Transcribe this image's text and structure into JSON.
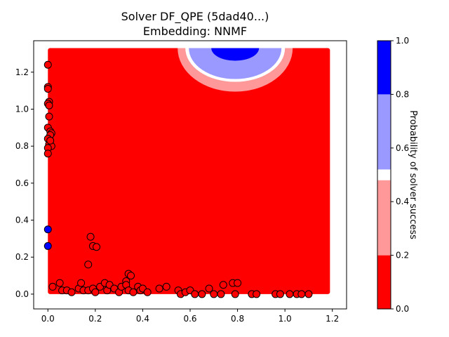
{
  "chart_data": {
    "type": "scatter",
    "title": "Solver DF_QPE (5dad40...)",
    "subtitle": "Embedding: NNMF",
    "xlabel": "",
    "ylabel": "",
    "xlim": [
      -0.06,
      1.26
    ],
    "ylim": [
      -0.08,
      1.37
    ],
    "x_ticks": [
      0.0,
      0.2,
      0.4,
      0.6,
      0.8,
      1.0,
      1.2
    ],
    "x_tick_labels": [
      "0.0",
      "0.2",
      "0.4",
      "0.6",
      "0.8",
      "1.0",
      "1.2"
    ],
    "y_ticks": [
      0.0,
      0.2,
      0.4,
      0.6,
      0.8,
      1.0,
      1.2
    ],
    "y_tick_labels": [
      "0.0",
      "0.2",
      "0.4",
      "0.6",
      "0.8",
      "1.0",
      "1.2"
    ],
    "grid": false,
    "background_field": {
      "description": "predicted probability of solver success over the embedding space",
      "x_range": [
        0.0,
        1.19
      ],
      "y_range": [
        0.0,
        1.33
      ],
      "dominant_value": 0.1,
      "high_region_center": [
        0.79,
        1.33
      ]
    },
    "colorbar": {
      "label": "Probability of solver success",
      "range": [
        0.0,
        1.0
      ],
      "ticks": [
        0.0,
        0.2,
        0.4,
        0.6,
        0.8,
        1.0
      ],
      "tick_labels": [
        "0.0",
        "0.2",
        "0.4",
        "0.6",
        "0.8",
        "1.0"
      ],
      "bands": [
        {
          "from": 0.0,
          "to": 0.2,
          "color": "#ff0000"
        },
        {
          "from": 0.2,
          "to": 0.48,
          "color": "#ff9999"
        },
        {
          "from": 0.48,
          "to": 0.52,
          "color": "#ffffff"
        },
        {
          "from": 0.52,
          "to": 0.8,
          "color": "#9999ff"
        },
        {
          "from": 0.8,
          "to": 1.0,
          "color": "#0000ff"
        }
      ]
    },
    "series": [
      {
        "marker": "circle",
        "fill": "#ff0000",
        "edge": "#000000",
        "points": [
          [
            0.0,
            1.24
          ],
          [
            0.0,
            1.12
          ],
          [
            0.0,
            1.11
          ],
          [
            0.005,
            1.04
          ],
          [
            0.0,
            1.03
          ],
          [
            0.005,
            1.02
          ],
          [
            0.005,
            0.96
          ],
          [
            0.0,
            0.9
          ],
          [
            0.01,
            0.88
          ],
          [
            0.015,
            0.87
          ],
          [
            0.01,
            0.86
          ],
          [
            0.0,
            0.84
          ],
          [
            0.005,
            0.81
          ],
          [
            0.015,
            0.8
          ],
          [
            0.0,
            0.79
          ],
          [
            0.0,
            0.76
          ],
          [
            0.01,
            0.83
          ],
          [
            0.18,
            0.31
          ],
          [
            0.19,
            0.26
          ],
          [
            0.205,
            0.255
          ],
          [
            0.17,
            0.16
          ],
          [
            0.34,
            0.11
          ],
          [
            0.35,
            0.1
          ],
          [
            0.33,
            0.07
          ],
          [
            0.02,
            0.04
          ],
          [
            0.05,
            0.06
          ],
          [
            0.06,
            0.02
          ],
          [
            0.08,
            0.02
          ],
          [
            0.1,
            0.01
          ],
          [
            0.13,
            0.03
          ],
          [
            0.14,
            0.06
          ],
          [
            0.15,
            0.02
          ],
          [
            0.17,
            0.02
          ],
          [
            0.19,
            0.03
          ],
          [
            0.2,
            0.01
          ],
          [
            0.22,
            0.04
          ],
          [
            0.24,
            0.06
          ],
          [
            0.25,
            0.02
          ],
          [
            0.26,
            0.05
          ],
          [
            0.28,
            0.03
          ],
          [
            0.3,
            0.01
          ],
          [
            0.31,
            0.04
          ],
          [
            0.33,
            0.05
          ],
          [
            0.34,
            0.02
          ],
          [
            0.36,
            0.01
          ],
          [
            0.38,
            0.04
          ],
          [
            0.39,
            0.02
          ],
          [
            0.4,
            0.03
          ],
          [
            0.42,
            0.01
          ],
          [
            0.47,
            0.03
          ],
          [
            0.5,
            0.04
          ],
          [
            0.55,
            0.02
          ],
          [
            0.56,
            0.0
          ],
          [
            0.58,
            0.01
          ],
          [
            0.6,
            0.02
          ],
          [
            0.62,
            0.0
          ],
          [
            0.65,
            0.0
          ],
          [
            0.68,
            0.03
          ],
          [
            0.7,
            0.0
          ],
          [
            0.73,
            0.0
          ],
          [
            0.74,
            0.05
          ],
          [
            0.78,
            0.06
          ],
          [
            0.79,
            0.0
          ],
          [
            0.8,
            0.06
          ],
          [
            0.86,
            0.0
          ],
          [
            0.88,
            0.0
          ],
          [
            0.96,
            0.0
          ],
          [
            0.98,
            0.0
          ],
          [
            1.02,
            0.0
          ],
          [
            1.05,
            0.0
          ],
          [
            1.07,
            0.0
          ],
          [
            1.1,
            0.0
          ]
        ]
      },
      {
        "marker": "circle",
        "fill": "#0000ff",
        "edge": "#000000",
        "points": [
          [
            0.0,
            0.35
          ],
          [
            0.0,
            0.26
          ]
        ]
      }
    ]
  }
}
